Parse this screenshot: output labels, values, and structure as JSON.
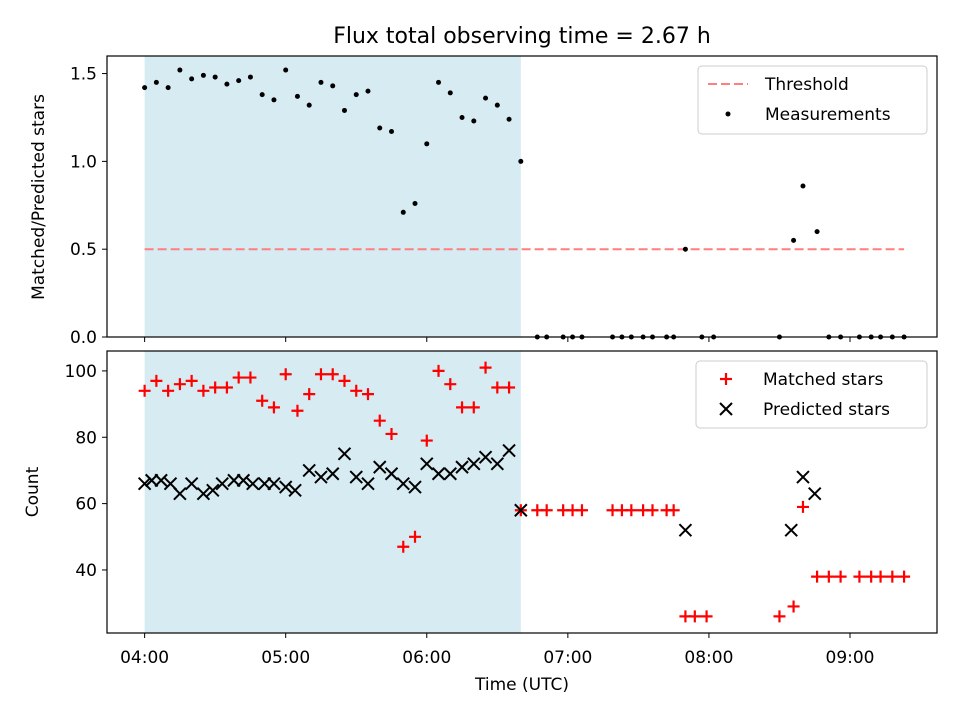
{
  "title": "Flux total observing time = 2.67 h",
  "colors": {
    "shade": "#add8e6",
    "threshold": "#ff7f7f",
    "measurement": "#000000",
    "matched": "#ff0000",
    "predicted": "#000000"
  },
  "chart_data": [
    {
      "type": "scatter",
      "panel": "top",
      "ylabel": "Matched/Predicted stars",
      "ylim": [
        0,
        1.6
      ],
      "yticks": [
        0.0,
        0.5,
        1.0,
        1.5
      ],
      "ytick_labels": [
        "0.0",
        "0.5",
        "1.0",
        "1.5"
      ],
      "xlim": [
        "03:44",
        "09:37"
      ],
      "grid": false,
      "legend": "top-right",
      "shaded_interval": [
        "04:00",
        "06:40"
      ],
      "threshold": {
        "name": "Threshold",
        "y": 0.5,
        "x_range": [
          "04:00",
          "09:23"
        ]
      },
      "series": [
        {
          "name": "Measurements",
          "x": [
            "04:00",
            "04:05",
            "04:10",
            "04:15",
            "04:20",
            "04:25",
            "04:30",
            "04:35",
            "04:40",
            "04:45",
            "04:50",
            "04:55",
            "05:00",
            "05:05",
            "05:10",
            "05:15",
            "05:20",
            "05:25",
            "05:30",
            "05:35",
            "05:40",
            "05:45",
            "05:50",
            "05:55",
            "06:00",
            "06:05",
            "06:10",
            "06:15",
            "06:20",
            "06:25",
            "06:30",
            "06:35",
            "06:40",
            "06:47",
            "06:51",
            "06:58",
            "07:02",
            "07:06",
            "07:19",
            "07:23",
            "07:27",
            "07:32",
            "07:36",
            "07:42",
            "07:45",
            "07:50",
            "07:57",
            "08:02",
            "08:30",
            "08:36",
            "08:40",
            "08:46",
            "08:51",
            "08:56",
            "09:04",
            "09:09",
            "09:13",
            "09:18",
            "09:23"
          ],
          "y": [
            1.42,
            1.45,
            1.42,
            1.52,
            1.47,
            1.49,
            1.48,
            1.44,
            1.46,
            1.48,
            1.38,
            1.35,
            1.52,
            1.37,
            1.32,
            1.45,
            1.43,
            1.29,
            1.38,
            1.4,
            1.19,
            1.17,
            0.71,
            0.76,
            1.1,
            1.45,
            1.39,
            1.25,
            1.23,
            1.36,
            1.32,
            1.24,
            1.0,
            0,
            0,
            0,
            0,
            0,
            0,
            0,
            0,
            0,
            0,
            0,
            0,
            0.5,
            0,
            0,
            0,
            0.55,
            0.86,
            0.6,
            0,
            0,
            0,
            0,
            0,
            0,
            0
          ]
        }
      ]
    },
    {
      "type": "scatter",
      "panel": "bottom",
      "xlabel": "Time (UTC)",
      "ylabel": "Count",
      "ylim": [
        21,
        106
      ],
      "yticks": [
        40,
        60,
        80,
        100
      ],
      "ytick_labels": [
        "40",
        "60",
        "80",
        "100"
      ],
      "xticks": [
        "04:00",
        "05:00",
        "06:00",
        "07:00",
        "08:00",
        "09:00"
      ],
      "xlim": [
        "03:44",
        "09:37"
      ],
      "grid": false,
      "legend": "top-right",
      "shaded_interval": [
        "04:00",
        "06:40"
      ],
      "series": [
        {
          "name": "Matched stars",
          "marker": "plus",
          "x": [
            "04:00",
            "04:05",
            "04:10",
            "04:15",
            "04:20",
            "04:25",
            "04:30",
            "04:35",
            "04:40",
            "04:45",
            "04:50",
            "04:55",
            "05:00",
            "05:05",
            "05:10",
            "05:15",
            "05:20",
            "05:25",
            "05:30",
            "05:35",
            "05:40",
            "05:45",
            "05:50",
            "05:55",
            "06:00",
            "06:05",
            "06:10",
            "06:15",
            "06:20",
            "06:25",
            "06:30",
            "06:35",
            "06:40",
            "06:47",
            "06:51",
            "06:58",
            "07:02",
            "07:06",
            "07:19",
            "07:23",
            "07:27",
            "07:32",
            "07:36",
            "07:42",
            "07:45",
            "07:50",
            "07:54",
            "07:59",
            "08:30",
            "08:36",
            "08:40",
            "08:46",
            "08:51",
            "08:56",
            "09:04",
            "09:09",
            "09:13",
            "09:18",
            "09:23"
          ],
          "y": [
            94,
            97,
            94,
            96,
            97,
            94,
            95,
            95,
            98,
            98,
            91,
            89,
            99,
            88,
            93,
            99,
            99,
            97,
            94,
            93,
            85,
            81,
            47,
            50,
            79,
            100,
            96,
            89,
            89,
            101,
            95,
            95,
            58,
            58,
            58,
            58,
            58,
            58,
            58,
            58,
            58,
            58,
            58,
            58,
            58,
            26,
            26,
            26,
            26,
            29,
            59,
            38,
            38,
            38,
            38,
            38,
            38,
            38,
            38
          ]
        },
        {
          "name": "Predicted stars",
          "marker": "x",
          "x": [
            "04:00",
            "04:03",
            "04:07",
            "04:11",
            "04:15",
            "04:20",
            "04:25",
            "04:29",
            "04:33",
            "04:38",
            "04:42",
            "04:46",
            "04:51",
            "04:55",
            "05:00",
            "05:04",
            "05:10",
            "05:15",
            "05:20",
            "05:25",
            "05:30",
            "05:35",
            "05:40",
            "05:45",
            "05:50",
            "05:55",
            "06:00",
            "06:05",
            "06:10",
            "06:15",
            "06:20",
            "06:25",
            "06:30",
            "06:35",
            "06:40",
            "07:50",
            "08:35",
            "08:40",
            "08:45"
          ],
          "y": [
            66,
            67,
            67,
            66,
            63,
            66,
            63,
            64,
            66,
            67,
            67,
            66,
            66,
            66,
            65,
            64,
            70,
            68,
            69,
            75,
            68,
            66,
            71,
            69,
            66,
            65,
            72,
            69,
            69,
            71,
            72,
            74,
            72,
            76,
            58,
            52,
            52,
            68,
            63
          ]
        }
      ]
    }
  ]
}
